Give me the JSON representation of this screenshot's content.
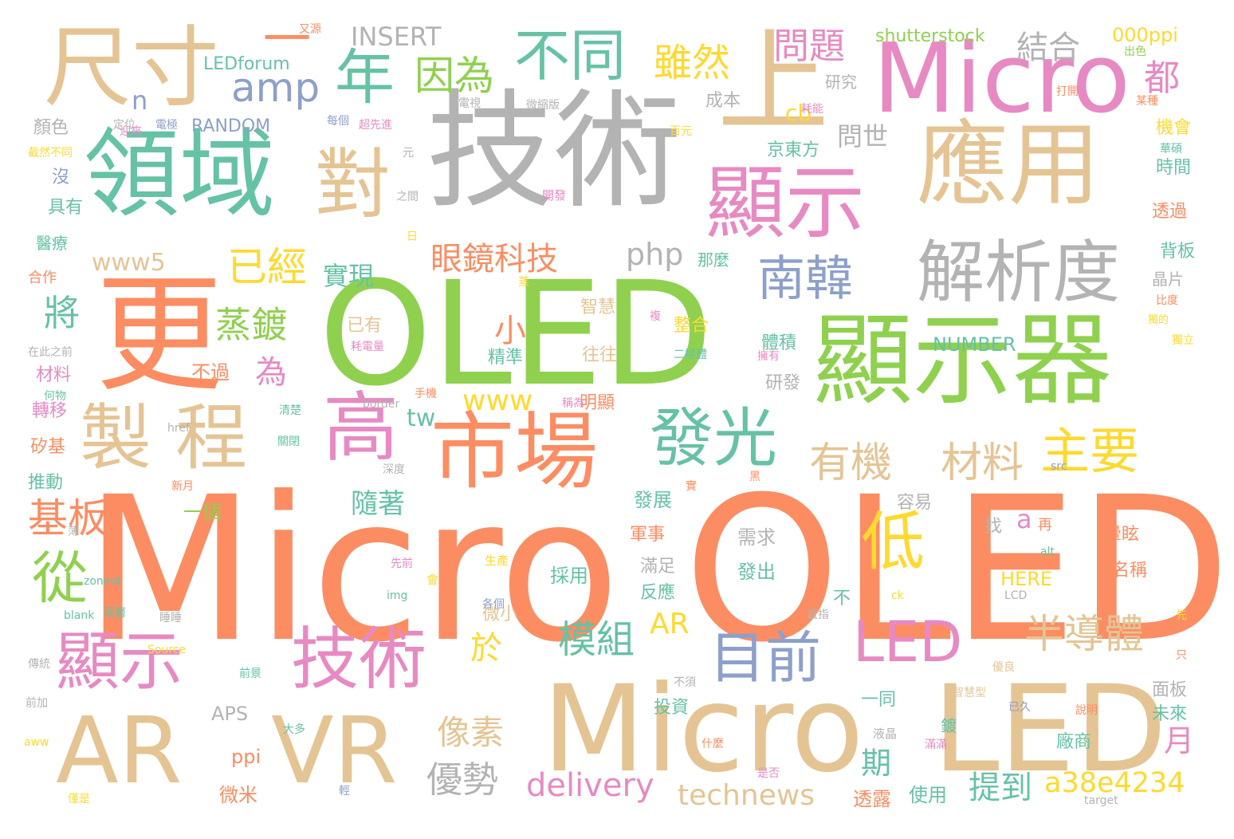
{
  "palette": {
    "orange": "#fc8d62",
    "green": "#8fd14f",
    "tan": "#e5c494",
    "teal": "#66c2a5",
    "gray": "#b3b3b3",
    "pink": "#e78ac3",
    "yellow": "#ffd92f",
    "blue": "#8da0cb"
  },
  "words": [
    {
      "text": "Micro OLED",
      "color": "orange"
    },
    {
      "text": "技術",
      "color": "gray"
    },
    {
      "text": "OLED",
      "color": "green"
    },
    {
      "text": "更",
      "color": "orange"
    },
    {
      "text": "Micro",
      "color": "tan"
    },
    {
      "text": "LED",
      "color": "tan"
    },
    {
      "text": "領域",
      "color": "teal"
    },
    {
      "text": "顯示器",
      "color": "green"
    },
    {
      "text": "應用",
      "color": "tan"
    },
    {
      "text": "顯示",
      "color": "pink"
    },
    {
      "text": "上",
      "color": "tan"
    },
    {
      "text": "Micro",
      "color": "pink"
    },
    {
      "text": "尺寸",
      "color": "tan"
    },
    {
      "text": "市場",
      "color": "orange"
    },
    {
      "text": "AR",
      "color": "tan"
    },
    {
      "text": "VR",
      "color": "tan"
    },
    {
      "text": "製程",
      "color": "tan"
    },
    {
      "text": "顯示",
      "color": "pink"
    },
    {
      "text": "技術",
      "color": "pink"
    },
    {
      "text": "對",
      "color": "tan"
    },
    {
      "text": "解析度",
      "color": "gray"
    },
    {
      "text": "一",
      "color": "orange"
    },
    {
      "text": "高",
      "color": "pink"
    },
    {
      "text": "發光",
      "color": "teal"
    },
    {
      "text": "不同",
      "color": "teal"
    },
    {
      "text": "年",
      "color": "teal"
    },
    {
      "text": "目前",
      "color": "blue"
    },
    {
      "text": "南韓",
      "color": "blue"
    },
    {
      "text": "LED",
      "color": "pink"
    },
    {
      "text": "主要",
      "color": "yellow"
    },
    {
      "text": "有機",
      "color": "tan"
    },
    {
      "text": "材料",
      "color": "tan"
    },
    {
      "text": "低",
      "color": "yellow"
    },
    {
      "text": "從",
      "color": "green"
    },
    {
      "text": "基板",
      "color": "orange"
    },
    {
      "text": "半導體",
      "color": "tan"
    },
    {
      "text": "amp",
      "color": "blue"
    },
    {
      "text": "因為",
      "color": "green"
    },
    {
      "text": "雖然",
      "color": "yellow"
    },
    {
      "text": "問題",
      "color": "pink"
    },
    {
      "text": "都",
      "color": "pink"
    },
    {
      "text": "眼鏡科技",
      "color": "orange"
    },
    {
      "text": "已經",
      "color": "yellow"
    },
    {
      "text": "蒸鍍",
      "color": "green"
    },
    {
      "text": "模組",
      "color": "teal"
    },
    {
      "text": "像素",
      "color": "tan"
    },
    {
      "text": "優勢",
      "color": "gray"
    },
    {
      "text": "delivery",
      "color": "pink"
    },
    {
      "text": "technews",
      "color": "tan"
    },
    {
      "text": "a38e4234",
      "color": "yellow"
    },
    {
      "text": "提到",
      "color": "teal"
    },
    {
      "text": "期",
      "color": "teal"
    },
    {
      "text": "月",
      "color": "pink"
    },
    {
      "text": "將",
      "color": "teal"
    },
    {
      "text": "結合",
      "color": "gray"
    },
    {
      "text": "www5",
      "color": "tan"
    },
    {
      "text": "php",
      "color": "gray"
    },
    {
      "text": "實現",
      "color": "teal"
    },
    {
      "text": "www",
      "color": "yellow"
    },
    {
      "text": "小",
      "color": "orange"
    },
    {
      "text": "為",
      "color": "pink"
    },
    {
      "text": "AR",
      "color": "yellow"
    },
    {
      "text": "於",
      "color": "yellow"
    },
    {
      "text": "tw",
      "color": "teal"
    },
    {
      "text": "n",
      "color": "blue"
    },
    {
      "text": "cb",
      "color": "yellow"
    },
    {
      "text": "a",
      "color": "pink"
    },
    {
      "text": "問世",
      "color": "gray"
    },
    {
      "text": "隨著",
      "color": "teal"
    },
    {
      "text": "INSERT",
      "color": "gray"
    },
    {
      "text": "shutterstock",
      "color": "green"
    },
    {
      "text": "000ppi",
      "color": "yellow"
    },
    {
      "text": "LEDforum",
      "color": "teal"
    },
    {
      "text": "RANDOM",
      "color": "blue"
    },
    {
      "text": "NUMBER",
      "color": "teal"
    },
    {
      "text": "HERE",
      "color": "yellow"
    },
    {
      "text": "APS",
      "color": "gray"
    },
    {
      "text": "ppi",
      "color": "orange"
    },
    {
      "text": "微米",
      "color": "orange"
    },
    {
      "text": "投資",
      "color": "teal"
    },
    {
      "text": "軍事",
      "color": "orange"
    },
    {
      "text": "發展",
      "color": "teal"
    },
    {
      "text": "滿足",
      "color": "gray"
    },
    {
      "text": "反應",
      "color": "teal"
    },
    {
      "text": "採用",
      "color": "teal"
    },
    {
      "text": "需求",
      "color": "gray"
    },
    {
      "text": "發出",
      "color": "teal"
    },
    {
      "text": "微小",
      "color": "tan"
    },
    {
      "text": "一個",
      "color": "green"
    },
    {
      "text": "不過",
      "color": "orange"
    },
    {
      "text": "研發",
      "color": "gray"
    },
    {
      "text": "明顯",
      "color": "orange"
    },
    {
      "text": "往往",
      "color": "tan"
    },
    {
      "text": "精準",
      "color": "teal"
    },
    {
      "text": "已有",
      "color": "tan"
    },
    {
      "text": "整合",
      "color": "yellow"
    },
    {
      "text": "智慧",
      "color": "tan"
    },
    {
      "text": "體積",
      "color": "teal"
    },
    {
      "text": "京東方",
      "color": "teal"
    },
    {
      "text": "研究",
      "color": "gray"
    },
    {
      "text": "成本",
      "color": "gray"
    },
    {
      "text": "顏色",
      "color": "gray"
    },
    {
      "text": "沒",
      "color": "blue"
    },
    {
      "text": "具有",
      "color": "teal"
    },
    {
      "text": "醫療",
      "color": "teal"
    },
    {
      "text": "合作",
      "color": "orange"
    },
    {
      "text": "材料",
      "color": "pink"
    },
    {
      "text": "轉移",
      "color": "pink"
    },
    {
      "text": "矽基",
      "color": "orange"
    },
    {
      "text": "推動",
      "color": "teal"
    },
    {
      "text": "機會",
      "color": "yellow"
    },
    {
      "text": "時間",
      "color": "teal"
    },
    {
      "text": "透過",
      "color": "orange"
    },
    {
      "text": "背板",
      "color": "teal"
    },
    {
      "text": "晶片",
      "color": "gray"
    },
    {
      "text": "容易",
      "color": "gray"
    },
    {
      "text": "找",
      "color": "gray"
    },
    {
      "text": "再",
      "color": "orange"
    },
    {
      "text": "暈眩",
      "color": "orange"
    },
    {
      "text": "名稱",
      "color": "orange"
    },
    {
      "text": "不",
      "color": "teal"
    },
    {
      "text": "一同",
      "color": "teal"
    },
    {
      "text": "鍍",
      "color": "teal"
    },
    {
      "text": "廠商",
      "color": "teal"
    },
    {
      "text": "面板",
      "color": "gray"
    },
    {
      "text": "未來",
      "color": "teal"
    },
    {
      "text": "透露",
      "color": "orange"
    },
    {
      "text": "使用",
      "color": "teal"
    },
    {
      "text": "那麼",
      "color": "teal"
    },
    {
      "text": "出色",
      "color": "green"
    },
    {
      "text": "打開",
      "color": "orange"
    },
    {
      "text": "某種",
      "color": "orange"
    },
    {
      "text": "電視",
      "color": "gray"
    },
    {
      "text": "微縮版",
      "color": "gray"
    },
    {
      "text": "定位",
      "color": "gray"
    },
    {
      "text": "又源",
      "color": "orange"
    },
    {
      "text": "每個",
      "color": "blue"
    },
    {
      "text": "超先進",
      "color": "pink"
    },
    {
      "text": "電極",
      "color": "blue"
    },
    {
      "text": "迎來",
      "color": "pink"
    },
    {
      "text": "截然不同",
      "color": "yellow"
    },
    {
      "text": "元",
      "color": "gray"
    },
    {
      "text": "之間",
      "color": "gray"
    },
    {
      "text": "開發",
      "color": "pink"
    },
    {
      "text": "日",
      "color": "yellow"
    },
    {
      "text": "耗能",
      "color": "pink"
    },
    {
      "text": "百元",
      "color": "yellow"
    },
    {
      "text": "華碩",
      "color": "teal"
    },
    {
      "text": "比度",
      "color": "orange"
    },
    {
      "text": "獨立",
      "color": "yellow"
    },
    {
      "text": "耗電量",
      "color": "pink"
    },
    {
      "text": "二極體",
      "color": "teal"
    },
    {
      "text": "擁有",
      "color": "pink"
    },
    {
      "text": "手機",
      "color": "orange"
    },
    {
      "text": "稱為",
      "color": "pink"
    },
    {
      "text": "border",
      "color": "gray"
    },
    {
      "text": "href",
      "color": "gray"
    },
    {
      "text": "清楚",
      "color": "teal"
    },
    {
      "text": "關閉",
      "color": "teal"
    },
    {
      "text": "深度",
      "color": "gray"
    },
    {
      "text": "黑",
      "color": "orange"
    },
    {
      "text": "src",
      "color": "blue"
    },
    {
      "text": "新月",
      "color": "orange"
    },
    {
      "text": "實",
      "color": "orange"
    },
    {
      "text": "薄",
      "color": "gray"
    },
    {
      "text": "zoneid",
      "color": "teal"
    },
    {
      "text": "先前",
      "color": "pink"
    },
    {
      "text": "生產",
      "color": "yellow"
    },
    {
      "text": "會",
      "color": "yellow"
    },
    {
      "text": "img",
      "color": "teal"
    },
    {
      "text": "alt",
      "color": "teal"
    },
    {
      "text": "ck",
      "color": "yellow"
    },
    {
      "text": "LCD",
      "color": "gray"
    },
    {
      "text": "blank",
      "color": "teal"
    },
    {
      "text": "兩層",
      "color": "teal"
    },
    {
      "text": "睡睡",
      "color": "gray"
    },
    {
      "text": "各個",
      "color": "blue"
    },
    {
      "text": "直指",
      "color": "gray"
    },
    {
      "text": "先",
      "color": "yellow"
    },
    {
      "text": "傳統",
      "color": "gray"
    },
    {
      "text": "Source",
      "color": "yellow"
    },
    {
      "text": "前景",
      "color": "teal"
    },
    {
      "text": "不須",
      "color": "gray"
    },
    {
      "text": "優良",
      "color": "tan"
    },
    {
      "text": "只",
      "color": "orange"
    },
    {
      "text": "智慧型",
      "color": "tan"
    },
    {
      "text": "已久",
      "color": "blue"
    },
    {
      "text": "說明",
      "color": "orange"
    },
    {
      "text": "前加",
      "color": "gray"
    },
    {
      "text": "aww",
      "color": "yellow"
    },
    {
      "text": "大多",
      "color": "teal"
    },
    {
      "text": "液晶",
      "color": "gray"
    },
    {
      "text": "滿滿",
      "color": "pink"
    },
    {
      "text": "什麼",
      "color": "orange"
    },
    {
      "text": "是否",
      "color": "pink"
    },
    {
      "text": "僅是",
      "color": "yellow"
    },
    {
      "text": "輕",
      "color": "blue"
    },
    {
      "text": "target",
      "color": "gray"
    },
    {
      "text": "在此之前",
      "color": "gray"
    },
    {
      "text": "何物",
      "color": "teal"
    },
    {
      "text": "蒸",
      "color": "yellow"
    },
    {
      "text": "複",
      "color": "pink"
    },
    {
      "text": "獨的",
      "color": "yellow"
    }
  ]
}
